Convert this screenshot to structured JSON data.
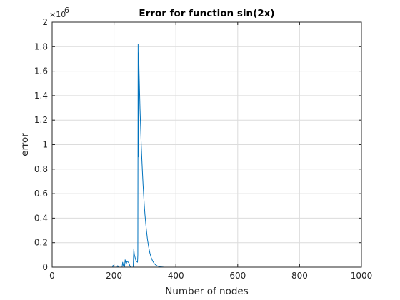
{
  "chart_data": {
    "type": "line",
    "title": "Error for function sin(2x)",
    "xlabel": "Number of nodes",
    "ylabel": "error",
    "xlim": [
      0,
      1000
    ],
    "ylim": [
      0,
      2000000
    ],
    "x_ticks": [
      0,
      200,
      400,
      600,
      800,
      1000
    ],
    "y_ticks": [
      0,
      0.2,
      0.4,
      0.6,
      0.8,
      1,
      1.2,
      1.4,
      1.6,
      1.8,
      2
    ],
    "y_tick_labels": [
      "0",
      "0.2",
      "0.4",
      "0.6",
      "0.8",
      "1",
      "1.2",
      "1.4",
      "1.6",
      "1.8",
      "2"
    ],
    "y_exponent_label": "×10",
    "y_exponent_power": "6",
    "grid": true,
    "line_color": "#0072bd",
    "series": [
      {
        "x": [
          0,
          195,
          197,
          199,
          201,
          210,
          212,
          214,
          216,
          222,
          226,
          228,
          230,
          232,
          234,
          236,
          238,
          240,
          242,
          244,
          246,
          248,
          250,
          252,
          255,
          258,
          260,
          262,
          263,
          264,
          265,
          266,
          268,
          270,
          272,
          274,
          276,
          277,
          278,
          279,
          280,
          281,
          282,
          283,
          284,
          286,
          288,
          290,
          292,
          294,
          296,
          298,
          300,
          304,
          308,
          312,
          316,
          320,
          325,
          330,
          335,
          340,
          345,
          350,
          360,
          370,
          380,
          390,
          400,
          420,
          450,
          500,
          600,
          700,
          800,
          900,
          1000
        ],
        "y": [
          0,
          0,
          15000,
          3000,
          0,
          0,
          12000,
          2000,
          0,
          0,
          0,
          40000,
          15000,
          3000,
          0,
          60000,
          40000,
          30000,
          50000,
          45000,
          40000,
          35000,
          20000,
          5000,
          0,
          0,
          0,
          0,
          80000,
          150000,
          120000,
          100000,
          80000,
          60000,
          50000,
          45000,
          40000,
          100000,
          1820000,
          900000,
          1750000,
          1600000,
          1500000,
          1400000,
          1300000,
          1150000,
          1000000,
          880000,
          770000,
          670000,
          580000,
          500000,
          430000,
          320000,
          230000,
          165000,
          115000,
          80000,
          50000,
          30000,
          18000,
          10000,
          5500,
          3000,
          1000,
          300,
          100,
          30,
          10,
          0,
          0,
          0,
          0,
          0,
          0,
          0,
          0
        ]
      }
    ]
  }
}
